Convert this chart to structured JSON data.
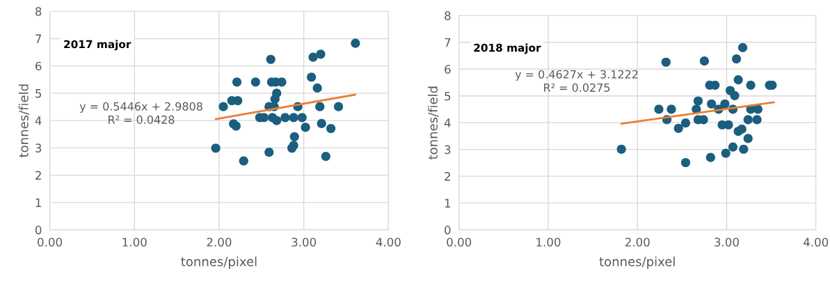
{
  "chart_data": [
    {
      "type": "scatter",
      "title": "2017 major",
      "xlabel": "tonnes/pixel",
      "ylabel": "tonnes/field",
      "annotations": [
        "y = 0.5446x + 2.9808\nR² = 0.0428"
      ],
      "xlim": [
        0,
        4
      ],
      "xticks": [
        {
          "value": 0,
          "label": "0.00"
        },
        {
          "value": 1,
          "label": "1.00"
        },
        {
          "value": 2,
          "label": "2.00"
        },
        {
          "value": 3,
          "label": "3.00"
        },
        {
          "value": 4,
          "label": "4.00"
        }
      ],
      "ylim": [
        0,
        8
      ],
      "yticks": [
        0,
        1,
        2,
        3,
        4,
        5,
        6,
        7,
        8
      ],
      "grid": true,
      "legend": false,
      "marker": "circle",
      "series": [
        {
          "color": "#1b5e7e",
          "x": [
            3.61,
            3.11,
            3.2,
            2.61,
            2.21,
            2.43,
            2.62,
            2.67,
            2.74,
            3.09,
            3.16,
            2.68,
            2.66,
            2.15,
            2.22,
            2.05,
            2.59,
            2.65,
            2.93,
            3.19,
            3.41,
            2.48,
            2.53,
            2.63,
            2.78,
            2.88,
            2.98,
            2.68,
            2.17,
            2.2,
            3.02,
            3.21,
            3.32,
            2.89,
            2.88,
            2.86,
            1.96,
            2.59,
            2.29,
            3.26
          ],
          "values": [
            6.83,
            6.32,
            6.43,
            6.24,
            5.41,
            5.41,
            5.41,
            5.41,
            5.41,
            5.59,
            5.19,
            5.0,
            4.79,
            4.73,
            4.73,
            4.51,
            4.51,
            4.51,
            4.51,
            4.51,
            4.51,
            4.11,
            4.11,
            4.11,
            4.11,
            4.11,
            4.11,
            4.0,
            3.88,
            3.8,
            3.75,
            3.89,
            3.71,
            3.41,
            3.09,
            2.99,
            2.99,
            2.84,
            2.52,
            2.69
          ]
        },
        {
          "type": "line",
          "color": "#ed7d31",
          "x": [
            1.96,
            3.61
          ],
          "values": [
            4.05,
            4.95
          ],
          "marker": "none",
          "line_style": "solid"
        }
      ]
    },
    {
      "type": "scatter",
      "title": "2018 major",
      "xlabel": "tonnes/pixel",
      "ylabel": "tonnes/field",
      "annotations": [
        "y = 0.4627x + 3.1222\nR² = 0.0275"
      ],
      "xlim": [
        0,
        4
      ],
      "xticks": [
        {
          "value": 0,
          "label": "0.00"
        },
        {
          "value": 1,
          "label": "1.00"
        },
        {
          "value": 2,
          "label": "2.00"
        },
        {
          "value": 3,
          "label": "3.00"
        },
        {
          "value": 4,
          "label": "4.00"
        }
      ],
      "ylim": [
        0,
        8
      ],
      "yticks": [
        0,
        1,
        2,
        3,
        4,
        5,
        6,
        7,
        8
      ],
      "grid": true,
      "legend": false,
      "marker": "circle",
      "series": [
        {
          "color": "#1b5e7e",
          "x": [
            1.82,
            2.32,
            2.75,
            3.18,
            3.11,
            3.13,
            2.81,
            2.87,
            3.27,
            3.48,
            3.51,
            3.04,
            3.09,
            2.68,
            2.83,
            2.98,
            2.24,
            2.38,
            2.66,
            2.91,
            3.07,
            3.27,
            3.35,
            2.33,
            2.68,
            2.74,
            3.24,
            3.34,
            2.54,
            2.46,
            2.95,
            3.02,
            3.13,
            3.17,
            3.24,
            3.07,
            3.19,
            2.99,
            2.82,
            2.54
          ],
          "values": [
            3.01,
            6.26,
            6.3,
            6.8,
            6.38,
            5.6,
            5.4,
            5.4,
            5.4,
            5.4,
            5.4,
            5.2,
            5.01,
            4.81,
            4.7,
            4.7,
            4.5,
            4.5,
            4.5,
            4.5,
            4.5,
            4.5,
            4.5,
            4.11,
            4.11,
            4.11,
            4.11,
            4.11,
            3.99,
            3.79,
            3.92,
            3.92,
            3.68,
            3.76,
            3.41,
            3.09,
            3.01,
            2.86,
            2.7,
            2.51
          ]
        },
        {
          "type": "line",
          "color": "#ed7d31",
          "x": [
            1.82,
            3.53
          ],
          "values": [
            3.96,
            4.76
          ],
          "marker": "none",
          "line_style": "solid"
        }
      ]
    }
  ]
}
